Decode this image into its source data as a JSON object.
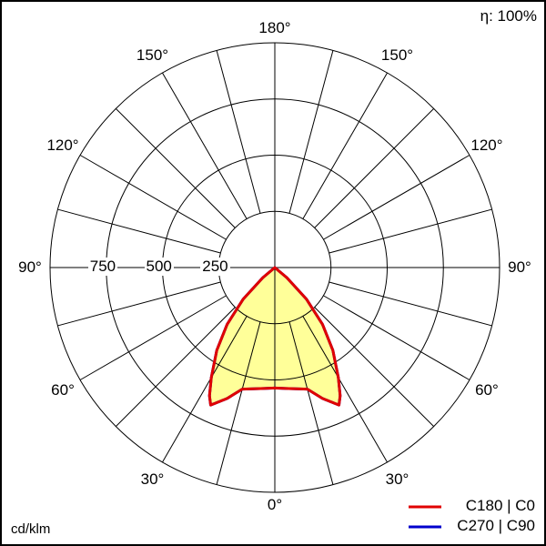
{
  "chart_data": {
    "type": "polar",
    "efficiency_label": "η: 100%",
    "unit_label": "cd/klm",
    "radial_ticks": [
      250,
      500,
      750
    ],
    "radial_max": 1000,
    "angle_labels": [
      {
        "angle": 0,
        "text": "0°"
      },
      {
        "angle": 30,
        "text": "30°"
      },
      {
        "angle": 60,
        "text": "60°"
      },
      {
        "angle": 90,
        "text": "90°"
      },
      {
        "angle": 120,
        "text": "120°"
      },
      {
        "angle": 150,
        "text": "150°"
      },
      {
        "angle": 180,
        "text": "180°"
      }
    ],
    "gamma": [
      0,
      5,
      10,
      15,
      20,
      25,
      27,
      30,
      35,
      40,
      45,
      50,
      55,
      60,
      90,
      180
    ],
    "series": [
      {
        "name": "C270 | C90",
        "color": "#0000cc",
        "values": [
          536,
          540,
          548,
          560,
          620,
          675,
          640,
          565,
          450,
          330,
          200,
          70,
          0,
          0,
          0,
          0
        ]
      },
      {
        "name": "C180 | C0",
        "color": "#e00000",
        "values": [
          536,
          540,
          548,
          560,
          620,
          675,
          640,
          565,
          450,
          330,
          200,
          70,
          0,
          0,
          0,
          0
        ]
      }
    ],
    "fill_color": "#ffff99",
    "grid": true,
    "legend_position": "bottom-right"
  }
}
